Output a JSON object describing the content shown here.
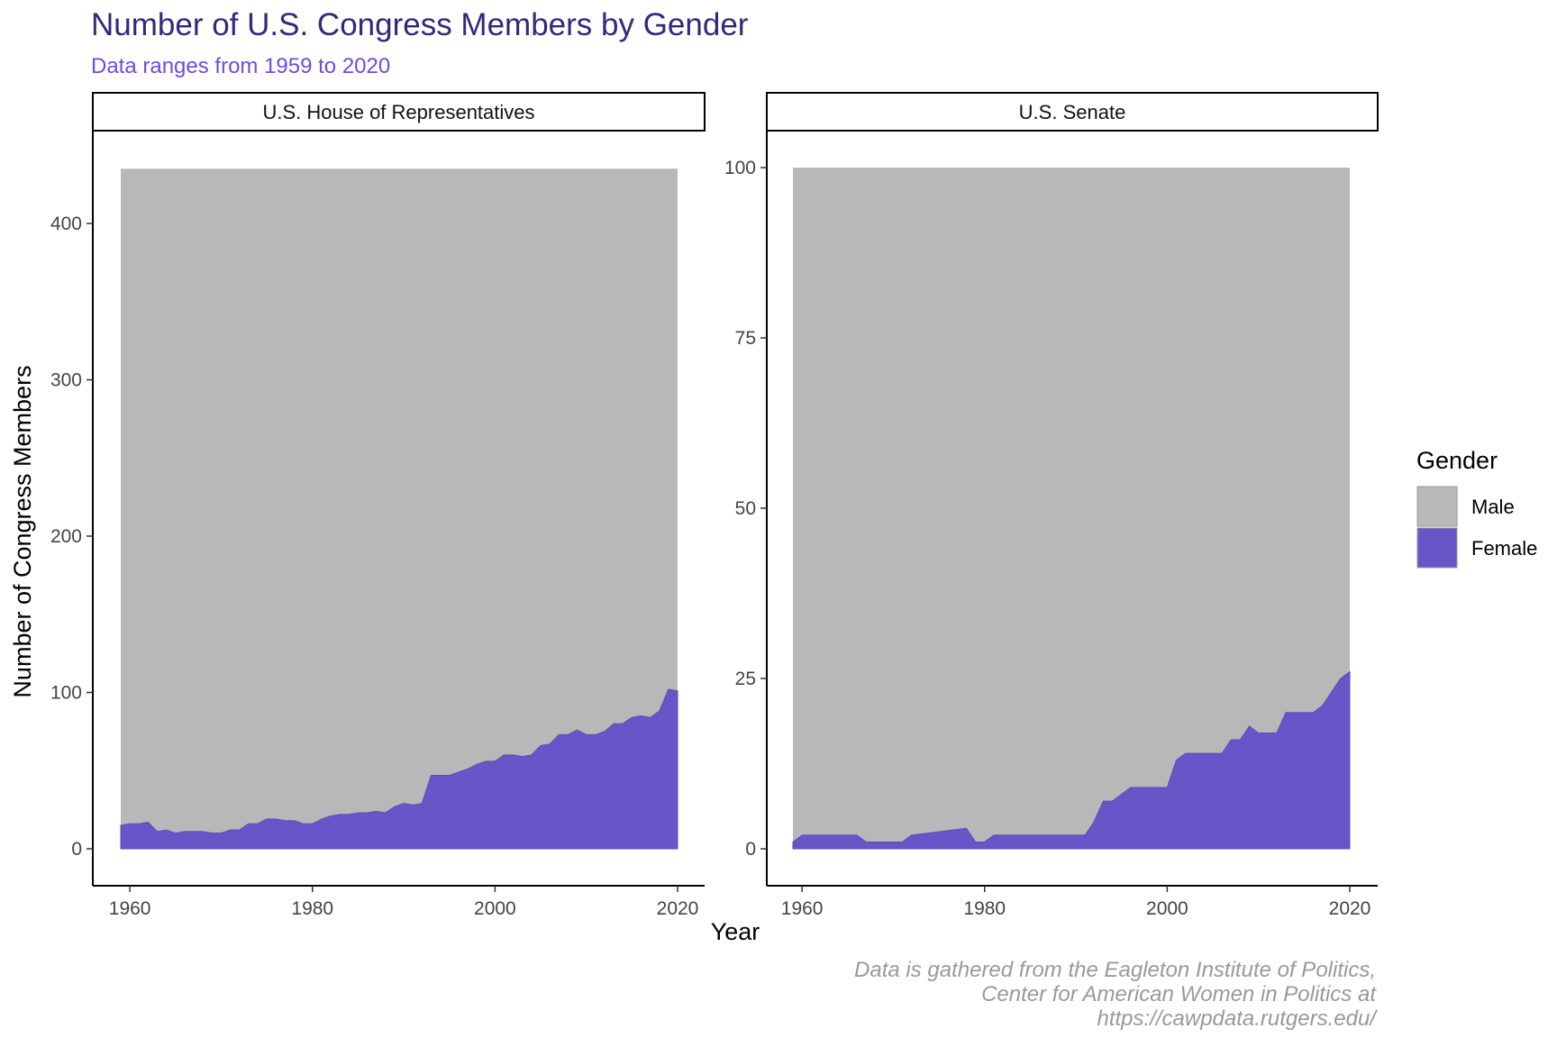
{
  "title": "Number of U.S. Congress Members by Gender",
  "subtitle": "Data ranges from 1959 to 2020",
  "caption": [
    "Data is gathered from the Eagleton Institute of Politics,",
    "Center for American Women in Politics at",
    "https://cawpdata.rutgers.edu/"
  ],
  "colors": {
    "male": "#b8b8b8",
    "female": "#6756c8",
    "title": "#33287a",
    "subtitle": "#6a4de6",
    "caption": "#999999"
  },
  "chart_data": {
    "type": "area",
    "stacked": true,
    "xlabel": "Year",
    "ylabel": "Number of Congress Members",
    "grid": false,
    "legend": {
      "title": "Gender",
      "position": "right",
      "entries": [
        "Male",
        "Female"
      ]
    },
    "panels": [
      {
        "strip": "U.S. House of Representatives",
        "xlim": [
          1959,
          2020
        ],
        "ylim": [
          0,
          435
        ],
        "xticks": [
          1960,
          1980,
          2000,
          2020
        ],
        "yticks": [
          0,
          100,
          200,
          300,
          400
        ],
        "total": 435,
        "female": [
          [
            1959,
            15
          ],
          [
            1960,
            16
          ],
          [
            1961,
            16
          ],
          [
            1962,
            17
          ],
          [
            1963,
            11
          ],
          [
            1964,
            12
          ],
          [
            1965,
            10
          ],
          [
            1966,
            11
          ],
          [
            1967,
            11
          ],
          [
            1968,
            11
          ],
          [
            1969,
            10
          ],
          [
            1970,
            10
          ],
          [
            1971,
            12
          ],
          [
            1972,
            12
          ],
          [
            1973,
            16
          ],
          [
            1974,
            16
          ],
          [
            1975,
            19
          ],
          [
            1976,
            19
          ],
          [
            1977,
            18
          ],
          [
            1978,
            18
          ],
          [
            1979,
            16
          ],
          [
            1980,
            16
          ],
          [
            1981,
            19
          ],
          [
            1982,
            21
          ],
          [
            1983,
            22
          ],
          [
            1984,
            22
          ],
          [
            1985,
            23
          ],
          [
            1986,
            23
          ],
          [
            1987,
            24
          ],
          [
            1988,
            23
          ],
          [
            1989,
            27
          ],
          [
            1990,
            29
          ],
          [
            1991,
            28
          ],
          [
            1992,
            29
          ],
          [
            1993,
            47
          ],
          [
            1994,
            47
          ],
          [
            1995,
            47
          ],
          [
            1996,
            49
          ],
          [
            1997,
            51
          ],
          [
            1998,
            54
          ],
          [
            1999,
            56
          ],
          [
            2000,
            56
          ],
          [
            2001,
            60
          ],
          [
            2002,
            60
          ],
          [
            2003,
            59
          ],
          [
            2004,
            60
          ],
          [
            2005,
            66
          ],
          [
            2006,
            67
          ],
          [
            2007,
            73
          ],
          [
            2008,
            73
          ],
          [
            2009,
            76
          ],
          [
            2010,
            73
          ],
          [
            2011,
            73
          ],
          [
            2012,
            75
          ],
          [
            2013,
            80
          ],
          [
            2014,
            80
          ],
          [
            2015,
            84
          ],
          [
            2016,
            85
          ],
          [
            2017,
            84
          ],
          [
            2018,
            88
          ],
          [
            2019,
            102
          ],
          [
            2020,
            101
          ]
        ]
      },
      {
        "strip": "U.S. Senate",
        "xlim": [
          1959,
          2020
        ],
        "ylim": [
          0,
          100
        ],
        "xticks": [
          1960,
          1980,
          2000,
          2020
        ],
        "yticks": [
          0,
          25,
          50,
          75,
          100
        ],
        "total": 100,
        "female": [
          [
            1959,
            1
          ],
          [
            1960,
            2
          ],
          [
            1966,
            2
          ],
          [
            1967,
            1
          ],
          [
            1971,
            1
          ],
          [
            1972,
            2
          ],
          [
            1978,
            3
          ],
          [
            1979,
            1
          ],
          [
            1980,
            1
          ],
          [
            1981,
            2
          ],
          [
            1991,
            2
          ],
          [
            1992,
            4
          ],
          [
            1993,
            7
          ],
          [
            1994,
            7
          ],
          [
            1996,
            9
          ],
          [
            2000,
            9
          ],
          [
            2001,
            13
          ],
          [
            2002,
            14
          ],
          [
            2006,
            14
          ],
          [
            2007,
            16
          ],
          [
            2008,
            16
          ],
          [
            2009,
            18
          ],
          [
            2010,
            17
          ],
          [
            2012,
            17
          ],
          [
            2013,
            20
          ],
          [
            2016,
            20
          ],
          [
            2017,
            21
          ],
          [
            2018,
            23
          ],
          [
            2019,
            25
          ],
          [
            2020,
            26
          ]
        ]
      }
    ]
  }
}
